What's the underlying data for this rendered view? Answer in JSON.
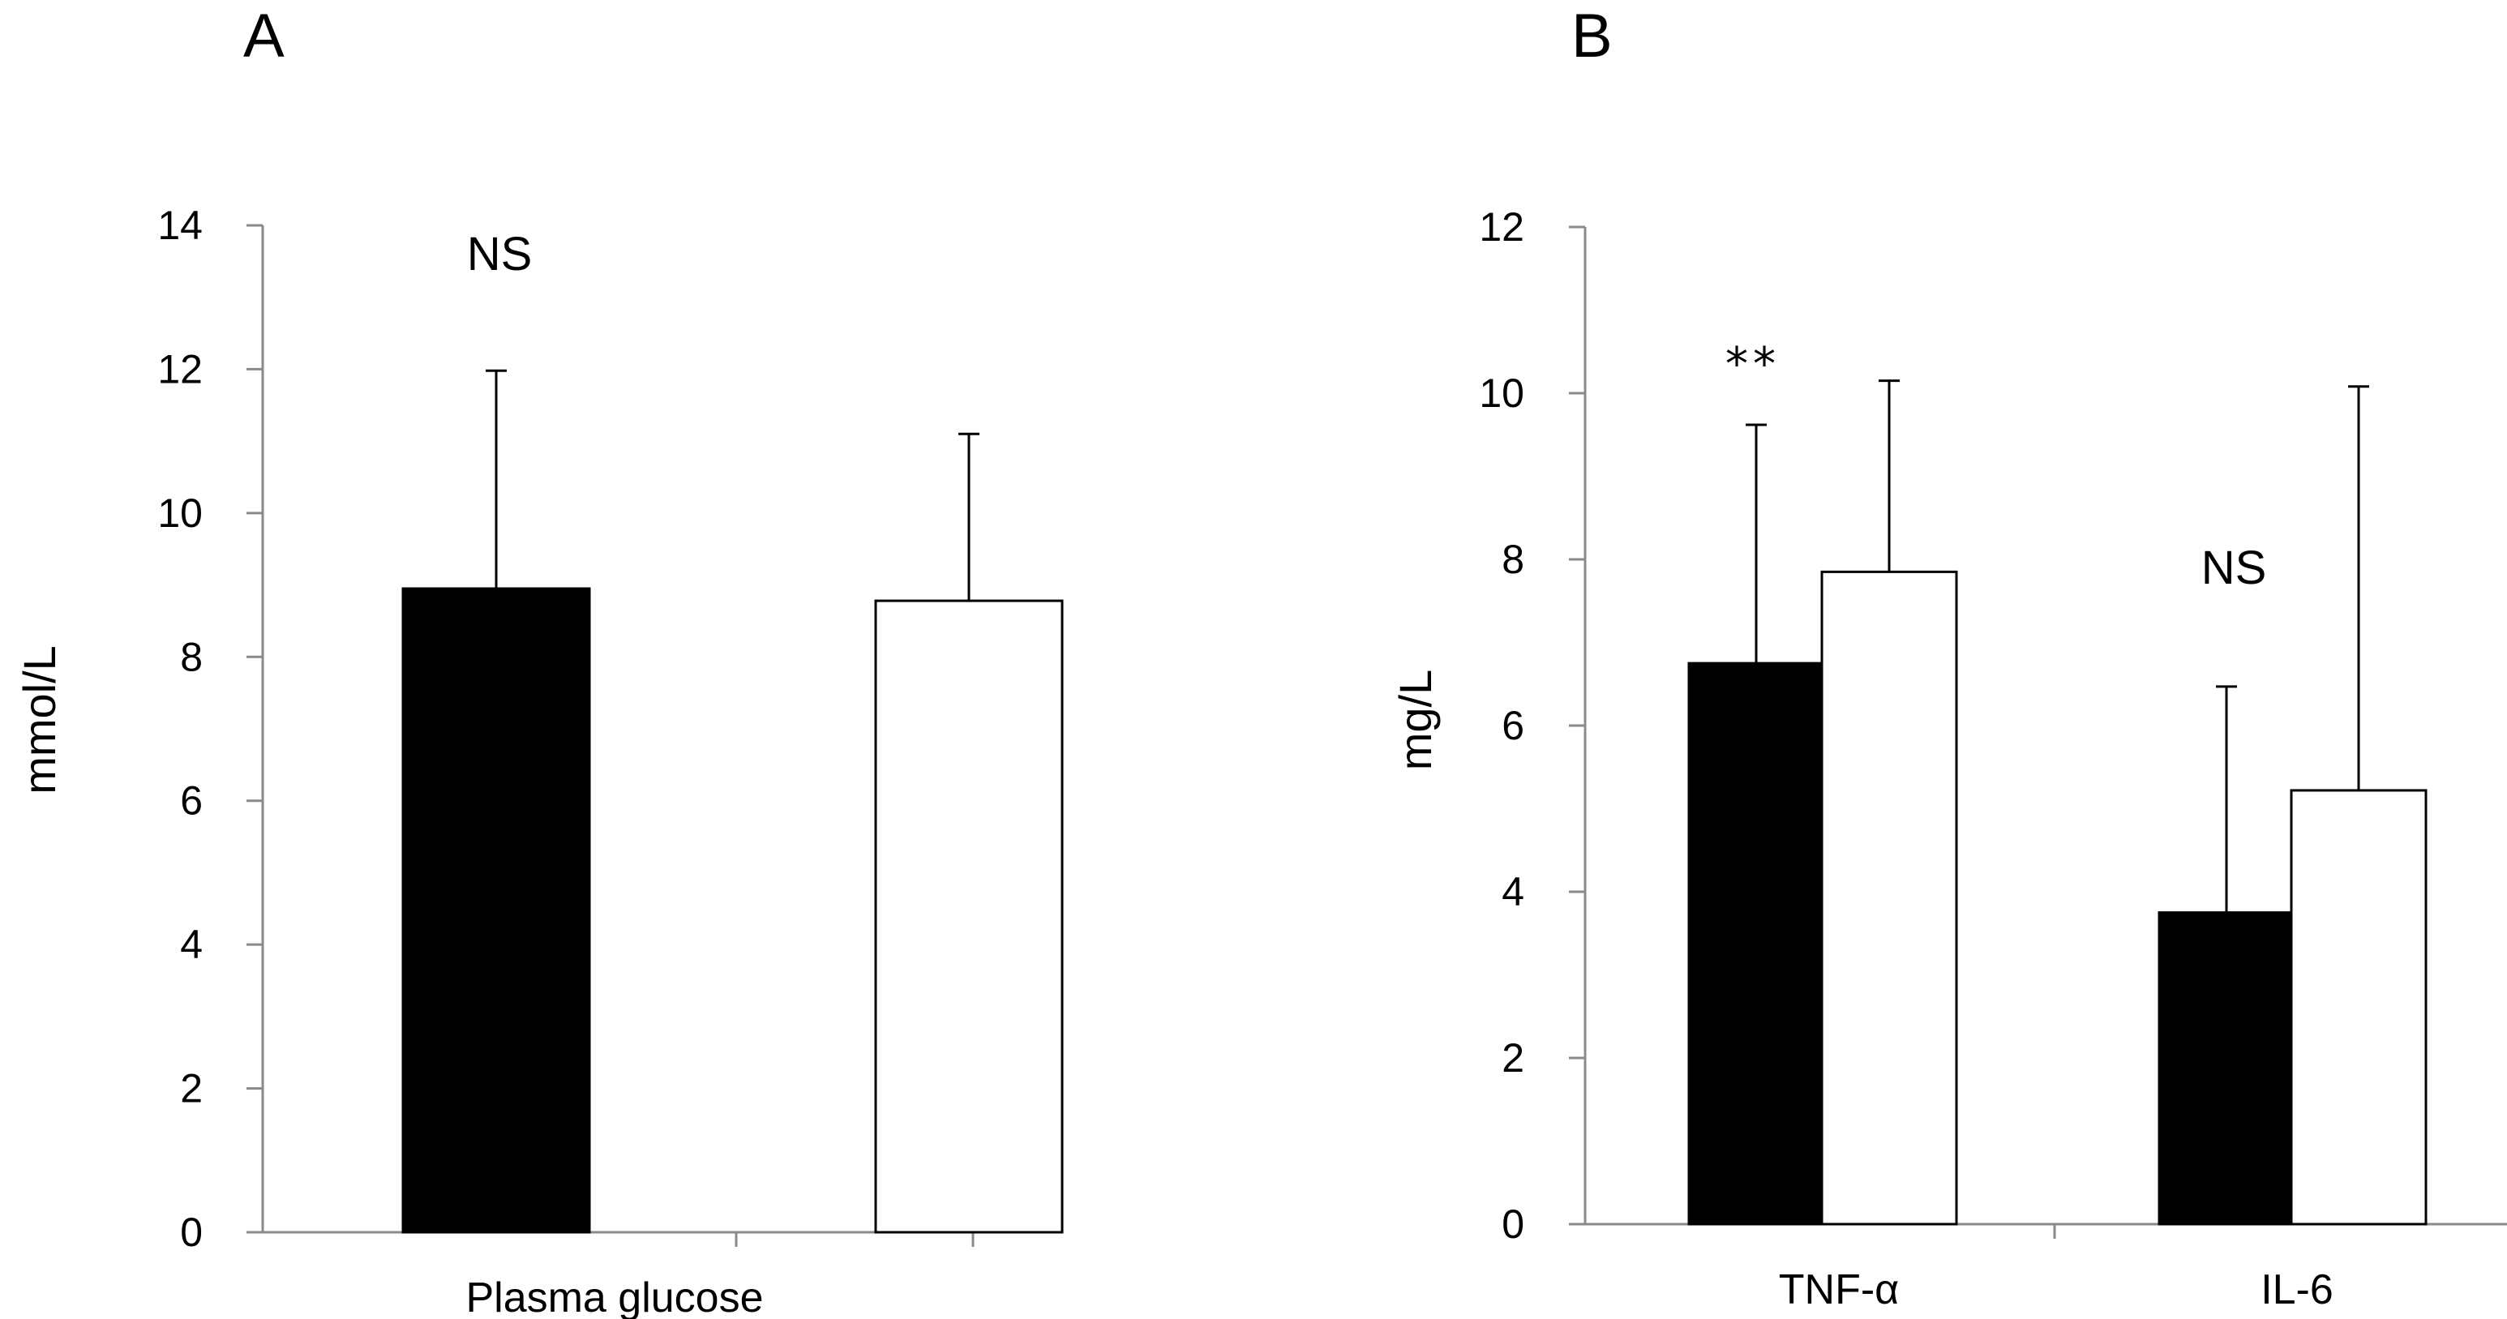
{
  "figure": {
    "panels": [
      "A",
      "B"
    ]
  },
  "colors": {
    "series_filled": "#000000",
    "series_open": "#ffffff",
    "axis": "#8a8a8a"
  },
  "chart_data": [
    {
      "type": "bar",
      "panel_label": "A",
      "title": "",
      "xlabel": "",
      "ylabel": "mmol/L",
      "categories": [
        "Plasma glucose"
      ],
      "series": [
        {
          "name": "",
          "fill": "black",
          "values": [
            8.95
          ],
          "error_upper": [
            11.98
          ]
        },
        {
          "name": "",
          "fill": "white",
          "values": [
            8.78
          ],
          "error_upper": [
            11.1
          ]
        }
      ],
      "ylim": [
        0,
        14
      ],
      "yticks": [
        "0",
        "2",
        "4",
        "6",
        "8",
        "10",
        "12",
        "14"
      ],
      "annotations": [
        "NS"
      ],
      "grid": false,
      "legend": "none"
    },
    {
      "type": "bar",
      "panel_label": "B",
      "title": "",
      "xlabel": "",
      "ylabel": "mg/L",
      "categories": [
        "TNF-α",
        "IL-6"
      ],
      "series": [
        {
          "name": "",
          "fill": "black",
          "values": [
            6.75,
            3.75
          ],
          "error_upper": [
            9.62,
            6.47
          ]
        },
        {
          "name": "",
          "fill": "white",
          "values": [
            7.85,
            5.22
          ],
          "error_upper": [
            10.15,
            10.08
          ]
        }
      ],
      "ylim": [
        0,
        12
      ],
      "yticks": [
        "0",
        "2",
        "4",
        "6",
        "8",
        "10",
        "12"
      ],
      "annotations": [
        "**",
        "NS"
      ],
      "grid": false,
      "legend": "none"
    }
  ]
}
